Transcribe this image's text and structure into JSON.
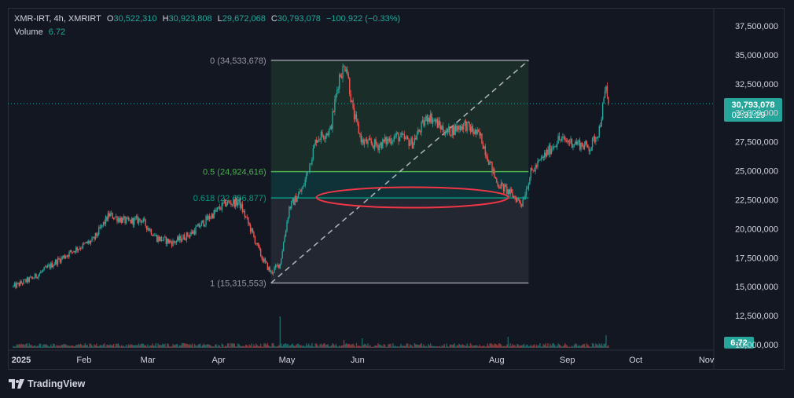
{
  "header": {
    "symbol": "XMR-IRT, 4h, XMRIRT",
    "open_label": "O",
    "open": "30,522,310",
    "high_label": "H",
    "high": "30,923,808",
    "low_label": "L",
    "low": "29,672,068",
    "close_label": "C",
    "close": "30,793,078",
    "change": "−100,922 (−0.33%)",
    "volume_label": "Volume",
    "volume": "6.72"
  },
  "badges": {
    "price": "30,793,078",
    "countdown": "02:31:29",
    "volume": "6.72"
  },
  "brand": "TradingView",
  "colors": {
    "up": "#26a69a",
    "down": "#ef5350",
    "accent": "#26a69a"
  },
  "chart_data": {
    "type": "candlestick",
    "timeframe": "4h",
    "y_axis": {
      "min": 10000000,
      "max": 37500000,
      "step": 2500000,
      "tick_labels": [
        "37,500,000",
        "35,000,000",
        "32,500,000",
        "30,000,000",
        "27,500,000",
        "25,000,000",
        "22,500,000",
        "20,000,000",
        "17,500,000",
        "15,000,000",
        "12,500,000",
        "10,000,000"
      ]
    },
    "x_axis": {
      "tick_labels": [
        "2025",
        "Feb",
        "Mar",
        "Apr",
        "May",
        "Jun",
        "Aug",
        "Sep",
        "Oct",
        "Nov"
      ]
    },
    "last_price": 30793078,
    "price_path": [
      {
        "date": "2025-01-01",
        "price": 15000000
      },
      {
        "date": "2025-01-10",
        "price": 15800000
      },
      {
        "date": "2025-01-20",
        "price": 17200000
      },
      {
        "date": "2025-01-28",
        "price": 18200000
      },
      {
        "date": "2025-02-05",
        "price": 19000000
      },
      {
        "date": "2025-02-12",
        "price": 21200000
      },
      {
        "date": "2025-02-20",
        "price": 20600000
      },
      {
        "date": "2025-02-26",
        "price": 20800000
      },
      {
        "date": "2025-03-05",
        "price": 19200000
      },
      {
        "date": "2025-03-12",
        "price": 18800000
      },
      {
        "date": "2025-03-20",
        "price": 19600000
      },
      {
        "date": "2025-03-28",
        "price": 21000000
      },
      {
        "date": "2025-04-04",
        "price": 22200000
      },
      {
        "date": "2025-04-10",
        "price": 22300000
      },
      {
        "date": "2025-04-15",
        "price": 20000000
      },
      {
        "date": "2025-04-20",
        "price": 17500000
      },
      {
        "date": "2025-04-24",
        "price": 16200000
      },
      {
        "date": "2025-04-28",
        "price": 17000000
      },
      {
        "date": "2025-05-02",
        "price": 21800000
      },
      {
        "date": "2025-05-08",
        "price": 23500000
      },
      {
        "date": "2025-05-14",
        "price": 27800000
      },
      {
        "date": "2025-05-20",
        "price": 28500000
      },
      {
        "date": "2025-05-24",
        "price": 33200000
      },
      {
        "date": "2025-05-27",
        "price": 34200000
      },
      {
        "date": "2025-05-30",
        "price": 30000000
      },
      {
        "date": "2025-06-03",
        "price": 27500000
      },
      {
        "date": "2025-06-10",
        "price": 27200000
      },
      {
        "date": "2025-06-18",
        "price": 28000000
      },
      {
        "date": "2025-06-25",
        "price": 27400000
      },
      {
        "date": "2025-07-02",
        "price": 29800000
      },
      {
        "date": "2025-07-10",
        "price": 28300000
      },
      {
        "date": "2025-07-18",
        "price": 29000000
      },
      {
        "date": "2025-07-25",
        "price": 27900000
      },
      {
        "date": "2025-08-01",
        "price": 24000000
      },
      {
        "date": "2025-08-06",
        "price": 23200000
      },
      {
        "date": "2025-08-12",
        "price": 22200000
      },
      {
        "date": "2025-08-16",
        "price": 24800000
      },
      {
        "date": "2025-08-22",
        "price": 26300000
      },
      {
        "date": "2025-08-28",
        "price": 27700000
      },
      {
        "date": "2025-09-05",
        "price": 27400000
      },
      {
        "date": "2025-09-11",
        "price": 27000000
      },
      {
        "date": "2025-09-15",
        "price": 28600000
      },
      {
        "date": "2025-09-18",
        "price": 32200000
      },
      {
        "date": "2025-09-19",
        "price": 30793078
      }
    ],
    "volume_spikes": [
      {
        "date": "2025-04-28",
        "value": 40
      },
      {
        "date": "2025-05-26",
        "value": 10
      },
      {
        "date": "2025-06-03",
        "value": 12
      },
      {
        "date": "2025-08-06",
        "value": 14
      },
      {
        "date": "2025-09-18",
        "value": 16
      }
    ],
    "fibonacci": {
      "start_date": "2025-04-24",
      "end_date": "2025-08-15",
      "levels": [
        {
          "label": "0 (34,533,678)",
          "price": 34533678
        },
        {
          "label": "0.5 (24,924,616)",
          "price": 24924616
        },
        {
          "label": "0.618 (22,656,877)",
          "price": 22656877
        },
        {
          "label": "1 (15,315,553)",
          "price": 15315553
        }
      ]
    },
    "ellipse_annotation": {
      "start_date": "2025-05-14",
      "end_date": "2025-08-06",
      "price": 22700000
    }
  }
}
